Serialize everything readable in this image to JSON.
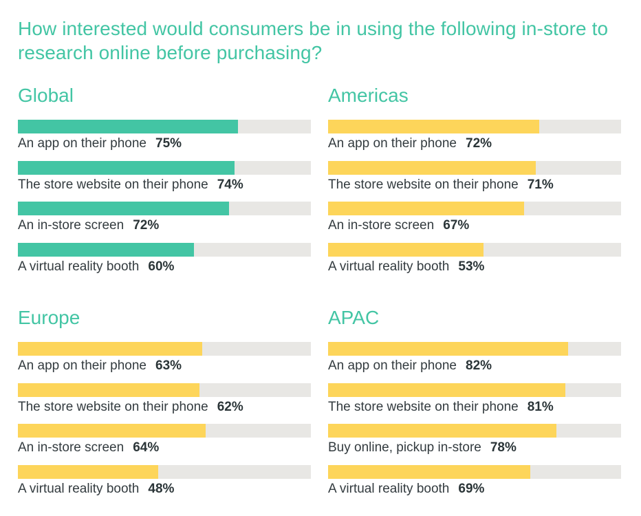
{
  "title": "How interested would consumers be in using the following in-store to research online before purchasing?",
  "colors": {
    "global": "#43C5A4",
    "regional": "#FDD55A",
    "track": "#E8E7E4",
    "heading": "#43C5A4"
  },
  "chart_data": [
    {
      "type": "bar",
      "orientation": "horizontal",
      "title": "Global",
      "xlim": [
        0,
        100
      ],
      "unit": "%",
      "categories": [
        "An app on their phone",
        "The store website on their phone",
        "An in-store screen",
        "A virtual reality booth"
      ],
      "values": [
        75,
        74,
        72,
        60
      ],
      "labels": [
        "75%",
        "74%",
        "72%",
        "60%"
      ],
      "color": "#43C5A4"
    },
    {
      "type": "bar",
      "orientation": "horizontal",
      "title": "Americas",
      "xlim": [
        0,
        100
      ],
      "unit": "%",
      "categories": [
        "An app on their phone",
        "The store website on their phone",
        "An in-store screen",
        "A virtual reality booth"
      ],
      "values": [
        72,
        71,
        67,
        53
      ],
      "labels": [
        "72%",
        "71%",
        "67%",
        "53%"
      ],
      "color": "#FDD55A"
    },
    {
      "type": "bar",
      "orientation": "horizontal",
      "title": "Europe",
      "xlim": [
        0,
        100
      ],
      "unit": "%",
      "categories": [
        "An app on their phone",
        "The store website on their phone",
        "An in-store screen",
        "A virtual reality booth"
      ],
      "values": [
        63,
        62,
        64,
        48
      ],
      "labels": [
        "63%",
        "62%",
        "64%",
        "48%"
      ],
      "color": "#FDD55A"
    },
    {
      "type": "bar",
      "orientation": "horizontal",
      "title": "APAC",
      "xlim": [
        0,
        100
      ],
      "unit": "%",
      "categories": [
        "An app on their phone",
        "The store website on their phone",
        "Buy online, pickup in-store",
        "A virtual reality booth"
      ],
      "values": [
        82,
        81,
        78,
        69
      ],
      "labels": [
        "82%",
        "81%",
        "78%",
        "69%"
      ],
      "color": "#FDD55A"
    }
  ]
}
